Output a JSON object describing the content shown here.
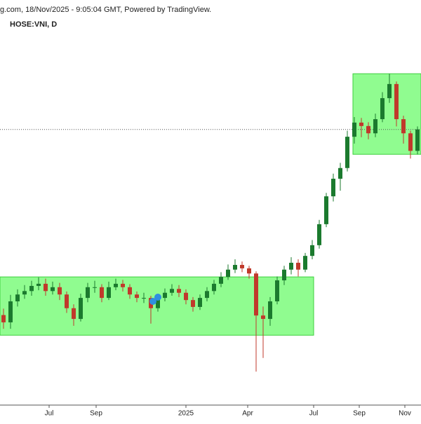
{
  "chart_data": {
    "type": "candlestick",
    "title": "g.com, 18/Nov/2025 - 9:05:04 GMT, Powered by TradingView.",
    "subtitle": "HOSE:VNI, D",
    "xlim": [
      -0.5,
      59.5
    ],
    "ylim": [
      1000,
      1945
    ],
    "xticks": [
      {
        "value": 6.5,
        "label": "Jul"
      },
      {
        "value": 13.2,
        "label": "Sep"
      },
      {
        "value": 26,
        "label": "2025"
      },
      {
        "value": 34.8,
        "label": "Apr"
      },
      {
        "value": 44.2,
        "label": "Jul"
      },
      {
        "value": 50.7,
        "label": "Sep"
      },
      {
        "value": 57.2,
        "label": "Nov"
      }
    ],
    "up_color": "#1b7a2e",
    "down_color": "#c0392b",
    "zones": [
      {
        "x": [
          -0.5,
          44.2
        ],
        "y": [
          1163,
          1299
        ],
        "color": "#7dfc7d"
      },
      {
        "x": [
          49.8,
          59.5
        ],
        "y": [
          1585,
          1773
        ],
        "color": "#7dfc7d"
      }
    ],
    "open": [
      1210,
      1193,
      1242,
      1258,
      1266,
      1278,
      1283,
      1266,
      1275,
      1258,
      1226,
      1201,
      1250,
      1275,
      1275,
      1250,
      1275,
      1283,
      1275,
      1258,
      1250,
      1250,
      1226,
      1250,
      1262,
      1271,
      1262,
      1245,
      1229,
      1250,
      1266,
      1283,
      1299,
      1316,
      1327,
      1319,
      1307,
      1209,
      1201,
      1242,
      1291,
      1316,
      1332,
      1316,
      1348,
      1373,
      1422,
      1487,
      1528,
      1553,
      1626,
      1659,
      1651,
      1634,
      1667,
      1716,
      1749,
      1667,
      1634,
      1593
    ],
    "high": [
      1225,
      1257,
      1270,
      1280,
      1290,
      1298,
      1295,
      1288,
      1285,
      1265,
      1235,
      1260,
      1285,
      1290,
      1282,
      1288,
      1295,
      1292,
      1282,
      1265,
      1262,
      1255,
      1258,
      1272,
      1282,
      1280,
      1270,
      1252,
      1258,
      1275,
      1292,
      1310,
      1328,
      1340,
      1335,
      1325,
      1312,
      1230,
      1252,
      1300,
      1325,
      1345,
      1340,
      1355,
      1385,
      1432,
      1495,
      1540,
      1565,
      1640,
      1672,
      1670,
      1660,
      1680,
      1730,
      1773,
      1755,
      1675,
      1640,
      1650
    ],
    "low": [
      1178,
      1178,
      1230,
      1248,
      1255,
      1268,
      1255,
      1258,
      1245,
      1215,
      1185,
      1195,
      1240,
      1262,
      1240,
      1245,
      1268,
      1265,
      1248,
      1240,
      1238,
      1190,
      1218,
      1242,
      1255,
      1252,
      1235,
      1218,
      1222,
      1242,
      1258,
      1275,
      1292,
      1308,
      1310,
      1295,
      1078,
      1110,
      1185,
      1235,
      1280,
      1305,
      1300,
      1310,
      1340,
      1365,
      1415,
      1475,
      1500,
      1545,
      1610,
      1625,
      1620,
      1625,
      1660,
      1705,
      1650,
      1610,
      1575,
      1585
    ],
    "close": [
      1193,
      1242,
      1258,
      1266,
      1278,
      1283,
      1266,
      1275,
      1258,
      1226,
      1201,
      1250,
      1275,
      1275,
      1250,
      1275,
      1283,
      1275,
      1258,
      1250,
      1250,
      1226,
      1250,
      1262,
      1271,
      1262,
      1245,
      1229,
      1250,
      1266,
      1283,
      1299,
      1316,
      1327,
      1319,
      1307,
      1209,
      1201,
      1242,
      1291,
      1316,
      1332,
      1316,
      1348,
      1373,
      1422,
      1487,
      1528,
      1553,
      1626,
      1659,
      1651,
      1634,
      1667,
      1716,
      1749,
      1667,
      1634,
      1593,
      1643
    ]
  }
}
